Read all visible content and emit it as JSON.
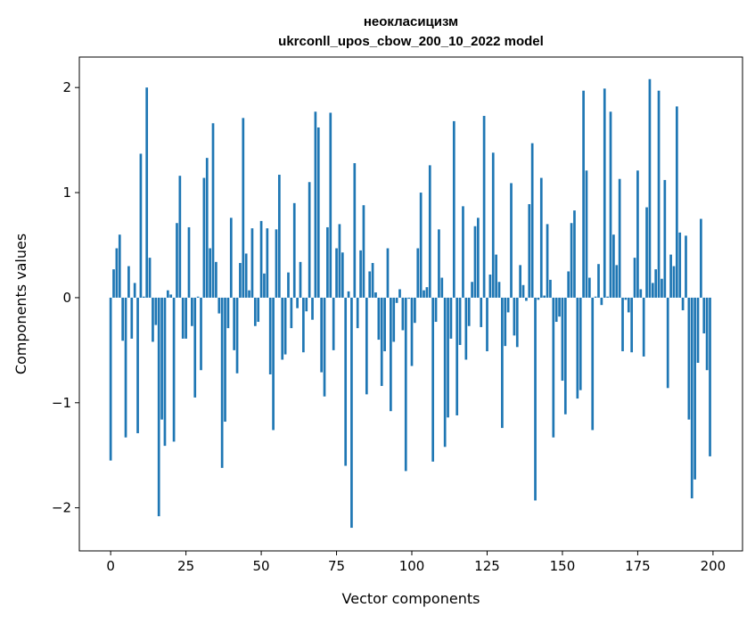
{
  "chart_data": {
    "type": "bar",
    "title": [
      "неокласицизм",
      "ukrconll_upos_cbow_200_10_2022 model"
    ],
    "xlabel": "Vector components",
    "ylabel": "Components values",
    "xlim": [
      -10.4,
      209.8
    ],
    "ylim": [
      -2.41,
      2.29
    ],
    "xticks": [
      0,
      25,
      50,
      75,
      100,
      125,
      150,
      175,
      200
    ],
    "yticks": [
      -2,
      -1,
      0,
      1,
      2
    ],
    "ytick_labels": [
      "−2",
      "−1",
      "0",
      "1",
      "2"
    ],
    "grid": false,
    "color": "#1f77b4",
    "values": [
      -1.55,
      0.27,
      0.47,
      0.6,
      -0.41,
      -1.33,
      0.3,
      -0.39,
      0.14,
      -1.29,
      1.37,
      0.01,
      2.0,
      0.38,
      -0.42,
      -0.26,
      -2.08,
      -1.16,
      -1.41,
      0.07,
      0.03,
      -1.37,
      0.71,
      1.16,
      -0.39,
      -0.39,
      0.67,
      -0.27,
      -0.95,
      0.01,
      -0.69,
      1.14,
      1.33,
      0.47,
      1.66,
      0.34,
      -0.15,
      -1.62,
      -1.18,
      -0.29,
      0.76,
      -0.5,
      -0.72,
      0.33,
      1.71,
      0.42,
      0.07,
      0.66,
      -0.27,
      -0.23,
      0.73,
      0.23,
      0.66,
      -0.73,
      -1.26,
      0.65,
      1.17,
      -0.59,
      -0.54,
      0.24,
      -0.29,
      0.9,
      -0.1,
      0.34,
      -0.52,
      -0.13,
      1.1,
      -0.21,
      1.77,
      1.62,
      -0.71,
      -0.94,
      0.67,
      1.76,
      -0.5,
      0.47,
      0.7,
      0.43,
      -1.6,
      0.06,
      -2.19,
      1.28,
      -0.29,
      0.45,
      0.88,
      -0.92,
      0.25,
      0.33,
      0.05,
      -0.4,
      -0.84,
      -0.51,
      0.47,
      -1.08,
      -0.42,
      -0.05,
      0.08,
      -0.31,
      -1.65,
      -0.01,
      -0.65,
      -0.24,
      0.47,
      1.0,
      0.07,
      0.1,
      1.26,
      -1.56,
      -0.23,
      0.65,
      0.19,
      -1.42,
      -1.14,
      -0.39,
      1.68,
      -1.12,
      -0.45,
      0.87,
      -0.59,
      -0.27,
      0.15,
      0.68,
      0.76,
      -0.28,
      1.73,
      -0.51,
      0.22,
      1.38,
      0.41,
      0.15,
      -1.24,
      -0.46,
      -0.14,
      1.09,
      -0.36,
      -0.47,
      0.31,
      0.12,
      -0.03,
      0.89,
      1.47,
      -1.93,
      -0.02,
      1.14,
      0.02,
      0.7,
      0.17,
      -1.33,
      -0.23,
      -0.18,
      -0.79,
      -1.11,
      0.25,
      0.71,
      0.83,
      -0.96,
      -0.88,
      1.97,
      1.21,
      0.19,
      -1.26,
      0.01,
      0.32,
      -0.07,
      1.99,
      0.01,
      1.77,
      0.6,
      0.31,
      1.13,
      -0.51,
      -0.02,
      -0.14,
      -0.52,
      0.38,
      1.21,
      0.08,
      -0.56,
      0.86,
      2.08,
      0.14,
      0.27,
      1.97,
      0.18,
      1.12,
      -0.86,
      0.41,
      0.3,
      1.82,
      0.62,
      -0.12,
      0.59,
      -1.16,
      -1.91,
      -1.73,
      -0.62,
      0.75,
      -0.34,
      -0.69,
      -1.51
    ]
  }
}
